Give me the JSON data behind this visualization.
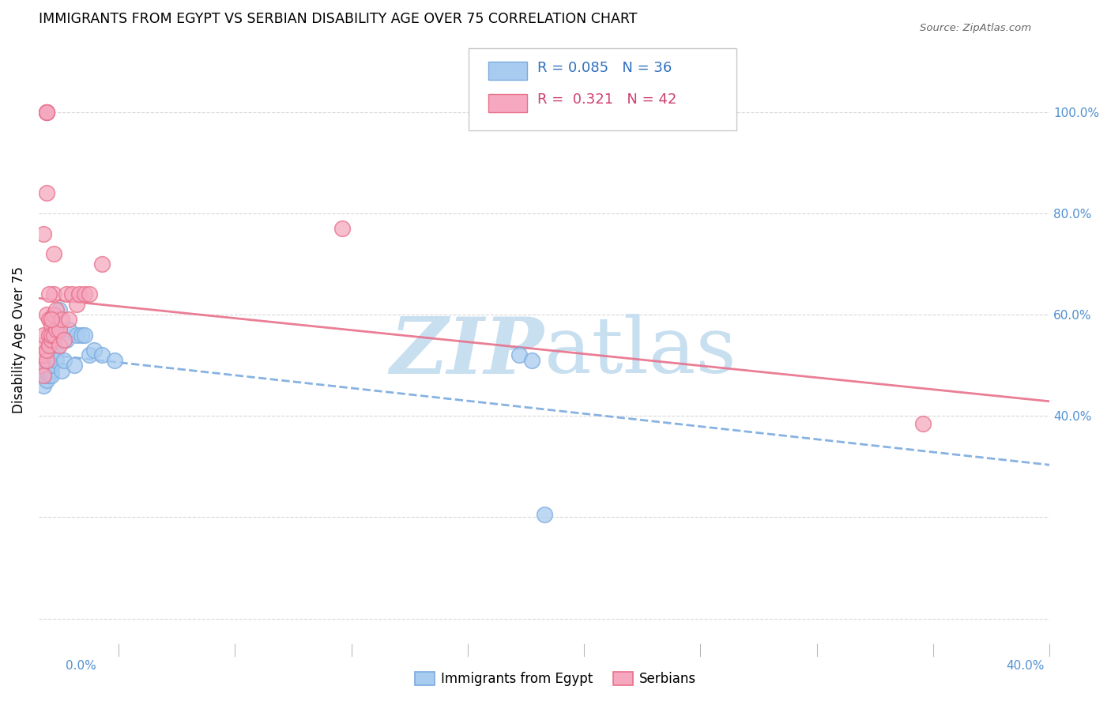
{
  "title": "IMMIGRANTS FROM EGYPT VS SERBIAN DISABILITY AGE OVER 75 CORRELATION CHART",
  "source": "Source: ZipAtlas.com",
  "ylabel": "Disability Age Over 75",
  "legend1_label": "Immigrants from Egypt",
  "legend2_label": "Serbians",
  "r1": 0.085,
  "n1": 36,
  "r2": 0.321,
  "n2": 42,
  "color_blue": "#A8CCF0",
  "color_pink": "#F5A8C0",
  "color_blue_edge": "#7AAADE",
  "color_pink_edge": "#E8708A",
  "color_blue_line": "#7AAADE",
  "color_pink_line": "#E8708A",
  "color_blue_text": "#3070C0",
  "color_pink_text": "#D04070",
  "color_right_axis": "#5090D0",
  "watermark_color": "#C8DFF0",
  "xlim": [
    0.0,
    0.4
  ],
  "ylim": [
    -0.05,
    1.15
  ],
  "yticks": [
    0.0,
    0.2,
    0.4,
    0.6,
    0.8,
    1.0
  ],
  "right_ytick_vals": [
    1.0,
    0.8,
    0.6,
    0.4
  ],
  "right_ytick_labels": [
    "100.0%",
    "80.0%",
    "60.0%",
    "40.0%"
  ],
  "egypt_x": [
    0.001,
    0.001,
    0.002,
    0.002,
    0.002,
    0.003,
    0.003,
    0.003,
    0.003,
    0.004,
    0.004,
    0.004,
    0.005,
    0.005,
    0.005,
    0.006,
    0.006,
    0.007,
    0.007,
    0.008,
    0.008,
    0.009,
    0.01,
    0.011,
    0.012,
    0.014,
    0.015,
    0.017,
    0.018,
    0.02,
    0.022,
    0.025,
    0.03,
    0.19,
    0.195,
    0.2
  ],
  "egypt_y": [
    0.5,
    0.52,
    0.48,
    0.5,
    0.46,
    0.5,
    0.49,
    0.47,
    0.51,
    0.5,
    0.48,
    0.51,
    0.49,
    0.48,
    0.5,
    0.54,
    0.58,
    0.53,
    0.51,
    0.57,
    0.61,
    0.49,
    0.51,
    0.55,
    0.57,
    0.5,
    0.56,
    0.56,
    0.56,
    0.52,
    0.53,
    0.52,
    0.51,
    0.52,
    0.51,
    0.205
  ],
  "serbian_x": [
    0.001,
    0.001,
    0.001,
    0.002,
    0.002,
    0.002,
    0.003,
    0.003,
    0.003,
    0.004,
    0.004,
    0.004,
    0.005,
    0.005,
    0.005,
    0.006,
    0.006,
    0.006,
    0.007,
    0.007,
    0.008,
    0.008,
    0.009,
    0.01,
    0.011,
    0.012,
    0.013,
    0.015,
    0.016,
    0.018,
    0.02,
    0.025,
    0.002,
    0.003,
    0.004,
    0.005,
    0.003,
    0.003,
    0.003,
    0.12,
    0.35,
    0.006
  ],
  "serbian_y": [
    0.5,
    0.52,
    0.54,
    0.48,
    0.52,
    0.56,
    0.51,
    0.53,
    0.6,
    0.54,
    0.56,
    0.59,
    0.55,
    0.58,
    0.56,
    0.6,
    0.56,
    0.64,
    0.61,
    0.57,
    0.54,
    0.57,
    0.59,
    0.55,
    0.64,
    0.59,
    0.64,
    0.62,
    0.64,
    0.64,
    0.64,
    0.7,
    0.76,
    0.84,
    0.64,
    0.59,
    1.0,
    1.0,
    1.0,
    0.77,
    0.385,
    0.72
  ]
}
